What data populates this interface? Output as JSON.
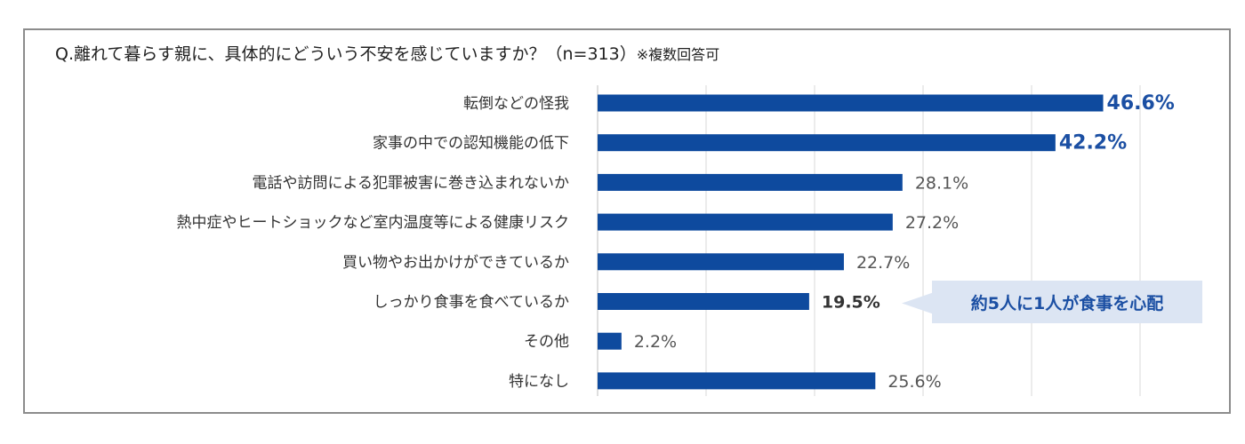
{
  "header": {
    "question": "Q.離れて暮らす親に、具体的にどういう不安を感じていますか？（n=313）",
    "note": "※複数回答可"
  },
  "callout": {
    "text": "約5人に1人が食事を心配"
  },
  "colors": {
    "bar": "#0e4a9e",
    "grid": "#d9d9d9",
    "highlight": "#1b4fa3",
    "callout_bg": "#dce5f3"
  },
  "chart_data": {
    "type": "bar",
    "orientation": "horizontal",
    "categories": [
      "転倒などの怪我",
      "家事の中での認知機能の低下",
      "電話や訪問による犯罪被害に巻き込まれないか",
      "熱中症やヒートショックなど室内温度等による健康リスク",
      "買い物やお出かけができているか",
      "しっかり食事を食べているか",
      "その他",
      "特になし"
    ],
    "values": [
      46.6,
      42.2,
      28.1,
      27.2,
      22.7,
      19.5,
      2.2,
      25.6
    ],
    "value_labels": [
      "46.6%",
      "42.2%",
      "28.1%",
      "27.2%",
      "22.7%",
      "19.5%",
      "2.2%",
      "25.6%"
    ],
    "label_styles": [
      "highlight",
      "highlight",
      "normal",
      "normal",
      "normal",
      "bold",
      "normal",
      "normal"
    ],
    "xlim": [
      0,
      50
    ],
    "grid": true,
    "legend": false
  }
}
